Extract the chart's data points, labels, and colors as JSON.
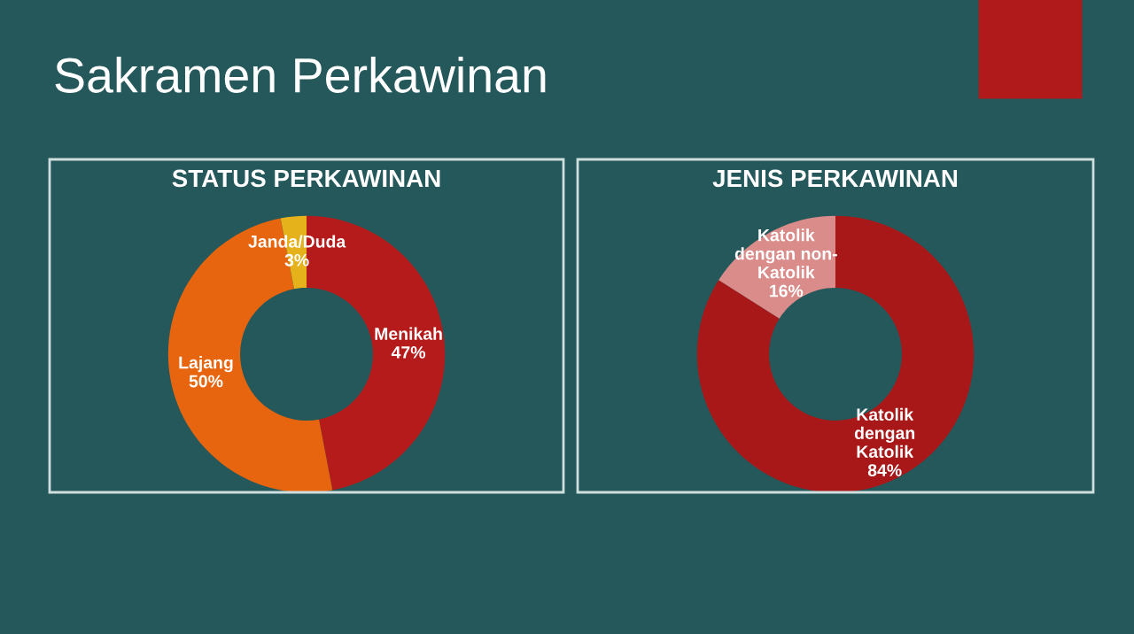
{
  "chart_data": [
    {
      "type": "donut",
      "title": "STATUS PERKAWINAN",
      "annotations": [
        "Sakramen Perkawinan"
      ],
      "categories": [
        "Menikah",
        "Lajang",
        "Janda/Duda"
      ],
      "values": [
        47,
        50,
        3
      ],
      "colors": [
        "#b51b1b",
        "#e8650f",
        "#e5b21c"
      ],
      "value_labels": [
        "47%",
        "50%",
        "3%"
      ]
    },
    {
      "type": "donut",
      "title": "JENIS PERKAWINAN",
      "categories": [
        "Katolik\ndengan\nKatolik",
        "Katolik\ndengan non-\nKatolik"
      ],
      "values": [
        84,
        16
      ],
      "colors": [
        "#a91818",
        "#d98c8a"
      ],
      "value_labels": [
        "84%",
        "16%"
      ]
    }
  ]
}
